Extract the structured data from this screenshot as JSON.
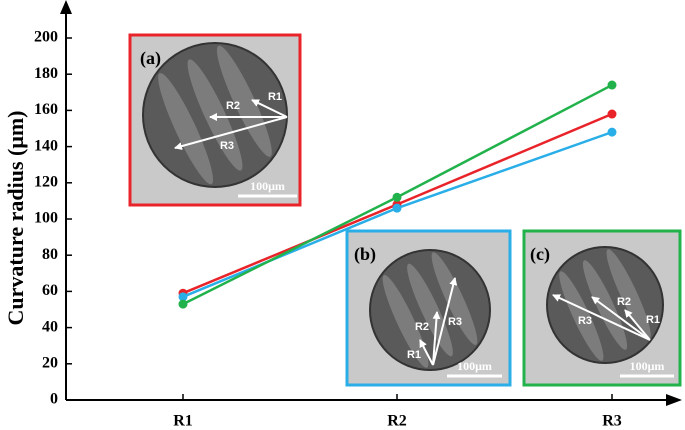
{
  "chart_data": {
    "type": "line",
    "ylabel": "Curvature radius (μm)",
    "categories": [
      "R1",
      "R2",
      "R3"
    ],
    "series": [
      {
        "color": "#e8242a",
        "values": [
          59,
          108,
          158
        ]
      },
      {
        "color": "#2aaee8",
        "values": [
          57,
          106,
          148
        ]
      },
      {
        "color": "#22b24c",
        "values": [
          53,
          112,
          174
        ]
      }
    ],
    "ylim": [
      0,
      200
    ],
    "yticks": [
      0,
      20,
      40,
      60,
      80,
      100,
      120,
      140,
      160,
      180,
      200
    ],
    "insets": [
      {
        "label": "(a)",
        "arrows": [
          "R1",
          "R2",
          "R3"
        ],
        "scale": "100μm",
        "color": "#e8242a"
      },
      {
        "label": "(b)",
        "arrows": [
          "R1",
          "R2",
          "R3"
        ],
        "scale": "100μm",
        "color": "#2aaee8"
      },
      {
        "label": "(c)",
        "arrows": [
          "R1",
          "R2",
          "R3"
        ],
        "scale": "100μm",
        "color": "#22b24c"
      }
    ]
  }
}
